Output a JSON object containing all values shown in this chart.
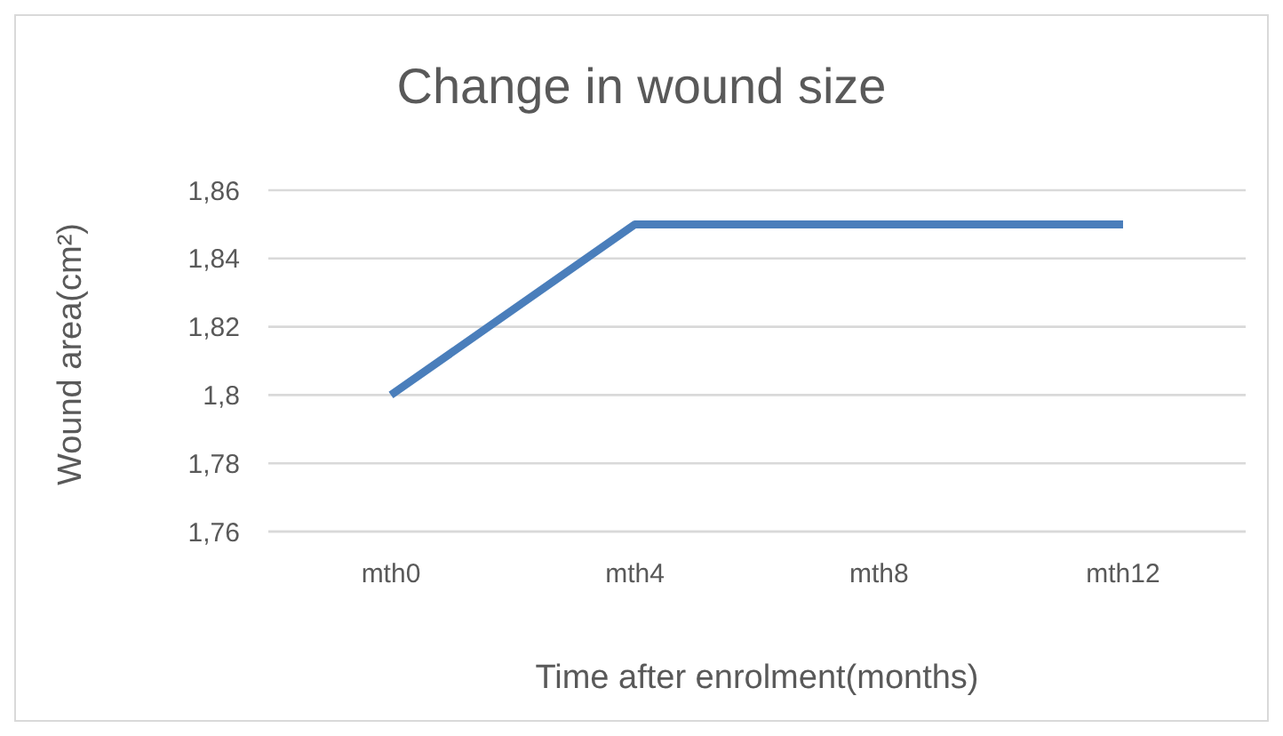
{
  "chart_data": {
    "type": "line",
    "title": "Change in wound size",
    "xlabel": "Time after enrolment(months)",
    "ylabel": "Wound area(cm²)",
    "categories": [
      "mth0",
      "mth4",
      "mth8",
      "mth12"
    ],
    "series": [
      {
        "color": "#4a7ebb",
        "values": [
          1.8,
          1.85,
          1.85,
          1.85
        ]
      }
    ],
    "ylim": [
      1.76,
      1.86
    ],
    "yticks": [
      {
        "value": 1.76,
        "label": "1,76"
      },
      {
        "value": 1.78,
        "label": "1,78"
      },
      {
        "value": 1.8,
        "label": "1,8"
      },
      {
        "value": 1.82,
        "label": "1,82"
      },
      {
        "value": 1.84,
        "label": "1,84"
      },
      {
        "value": 1.86,
        "label": "1,86"
      }
    ],
    "grid": "y",
    "legend": false,
    "marker": "none",
    "line_style": "solid"
  }
}
